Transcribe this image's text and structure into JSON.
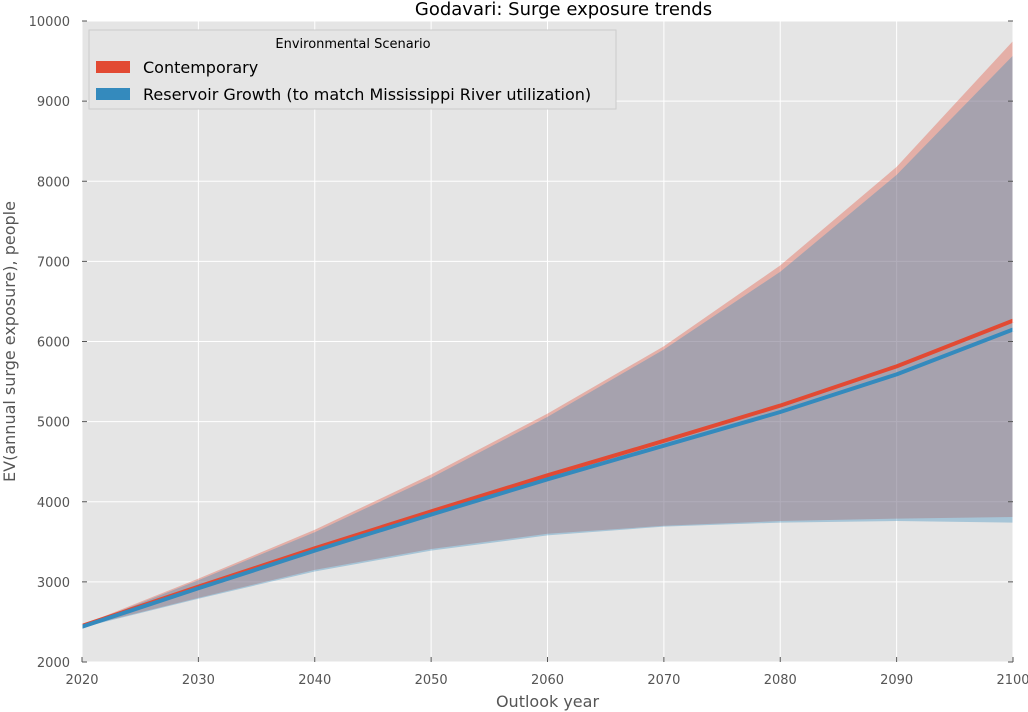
{
  "chart_data": {
    "type": "line",
    "title": "Godavari: Surge exposure trends",
    "xlabel": "Outlook year",
    "ylabel": "EV(annual surge exposure), people",
    "xlim": [
      2020,
      2100
    ],
    "ylim": [
      2000,
      10000
    ],
    "xticks": [
      2020,
      2030,
      2040,
      2050,
      2060,
      2070,
      2080,
      2090,
      2100
    ],
    "yticks": [
      2000,
      3000,
      4000,
      5000,
      6000,
      7000,
      8000,
      9000,
      10000
    ],
    "grid": true,
    "background": "#e5e5e5",
    "legend": {
      "title": "Environmental Scenario",
      "position": "top-left"
    },
    "x": [
      2020,
      2030,
      2040,
      2050,
      2060,
      2070,
      2080,
      2090,
      2100
    ],
    "series": [
      {
        "name": "Contemporary",
        "color": "#e24a33",
        "values": [
          2450,
          2940,
          3420,
          3880,
          4330,
          4760,
          5200,
          5690,
          6260
        ],
        "upper": [
          2460,
          3040,
          3650,
          4340,
          5100,
          5940,
          6950,
          8180,
          9750
        ],
        "lower": [
          2440,
          2800,
          3150,
          3410,
          3600,
          3700,
          3760,
          3790,
          3810
        ]
      },
      {
        "name": "Reservoir Growth (to match Mississippi River utilization)",
        "color": "#348abd",
        "values": [
          2440,
          2920,
          3390,
          3840,
          4280,
          4700,
          5120,
          5590,
          6150
        ],
        "upper": [
          2450,
          3020,
          3620,
          4300,
          5060,
          5900,
          6870,
          8080,
          9570
        ],
        "lower": [
          2430,
          2790,
          3130,
          3390,
          3580,
          3690,
          3740,
          3760,
          3740
        ]
      }
    ]
  }
}
